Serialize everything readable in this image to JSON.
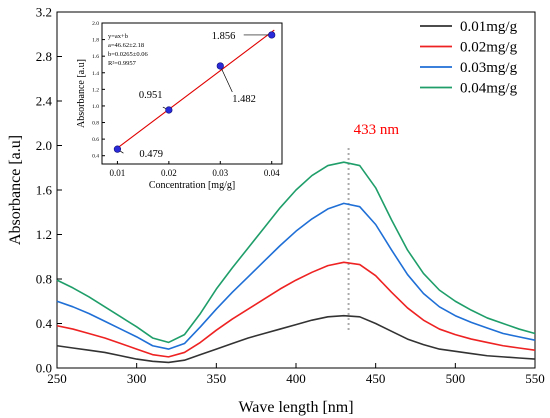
{
  "chart_data": [
    {
      "type": "line",
      "title": "",
      "xlabel": "Wave length  [nm]",
      "ylabel": "Absorbance [a.u]",
      "xlim": [
        250,
        550
      ],
      "ylim": [
        0.0,
        3.2
      ],
      "x_ticks": [
        "250",
        "300",
        "350",
        "400",
        "450",
        "500",
        "550"
      ],
      "y_ticks": [
        "0.0",
        "0.4",
        "0.8",
        "1.2",
        "1.6",
        "2.0",
        "2.4",
        "2.8",
        "3.2"
      ],
      "x": [
        250,
        260,
        270,
        280,
        290,
        300,
        310,
        320,
        330,
        340,
        350,
        360,
        370,
        380,
        390,
        400,
        410,
        420,
        430,
        440,
        450,
        460,
        470,
        480,
        490,
        500,
        510,
        520,
        530,
        540,
        550
      ],
      "legend_position": "top-right",
      "annotation": {
        "text": "433 nm",
        "x": 433,
        "color": "#ff0000"
      },
      "series": [
        {
          "name": "0.01mg/g",
          "color": "#333333",
          "values": [
            0.2,
            0.18,
            0.16,
            0.14,
            0.11,
            0.08,
            0.06,
            0.05,
            0.07,
            0.12,
            0.17,
            0.22,
            0.27,
            0.31,
            0.35,
            0.39,
            0.43,
            0.46,
            0.47,
            0.46,
            0.4,
            0.33,
            0.26,
            0.21,
            0.17,
            0.15,
            0.13,
            0.11,
            0.1,
            0.09,
            0.08
          ]
        },
        {
          "name": "0.02mg/g",
          "color": "#ee2222",
          "values": [
            0.38,
            0.35,
            0.31,
            0.27,
            0.22,
            0.17,
            0.12,
            0.1,
            0.14,
            0.23,
            0.34,
            0.44,
            0.53,
            0.62,
            0.71,
            0.79,
            0.86,
            0.92,
            0.95,
            0.93,
            0.83,
            0.68,
            0.54,
            0.43,
            0.35,
            0.3,
            0.26,
            0.23,
            0.2,
            0.18,
            0.16
          ]
        },
        {
          "name": "0.03mg/g",
          "color": "#1f6fd6",
          "values": [
            0.6,
            0.55,
            0.49,
            0.42,
            0.35,
            0.28,
            0.2,
            0.17,
            0.22,
            0.37,
            0.53,
            0.68,
            0.82,
            0.96,
            1.1,
            1.23,
            1.34,
            1.43,
            1.48,
            1.45,
            1.29,
            1.06,
            0.84,
            0.67,
            0.55,
            0.47,
            0.41,
            0.36,
            0.31,
            0.28,
            0.25
          ]
        },
        {
          "name": "0.04mg/g",
          "color": "#1f9e6a",
          "values": [
            0.79,
            0.72,
            0.64,
            0.55,
            0.46,
            0.37,
            0.27,
            0.23,
            0.3,
            0.49,
            0.71,
            0.9,
            1.08,
            1.26,
            1.44,
            1.6,
            1.73,
            1.82,
            1.85,
            1.82,
            1.62,
            1.33,
            1.06,
            0.85,
            0.7,
            0.6,
            0.52,
            0.45,
            0.4,
            0.35,
            0.31
          ]
        }
      ]
    },
    {
      "type": "scatter",
      "title": "",
      "xlabel": "Concentration  [mg/g]",
      "ylabel": "Absorbance [a.u]",
      "xlim": [
        0.007,
        0.042
      ],
      "ylim": [
        0.3,
        2.0
      ],
      "x_ticks": [
        "0.01",
        "0.02",
        "0.03",
        "0.04"
      ],
      "y_ticks": [
        "0.4",
        "0.6",
        "0.8",
        "1.0",
        "1.2",
        "1.4",
        "1.6",
        "1.8",
        "2.0"
      ],
      "points": [
        {
          "x": 0.01,
          "y": 0.479,
          "label": "0.479"
        },
        {
          "x": 0.02,
          "y": 0.951,
          "label": "0.951"
        },
        {
          "x": 0.03,
          "y": 1.482,
          "label": "1.482"
        },
        {
          "x": 0.04,
          "y": 1.856,
          "label": "1.856"
        }
      ],
      "fit": {
        "slope": 46.62,
        "intercept": 0.0265,
        "color": "#e00000"
      },
      "equation": [
        "y=ax+b",
        "a=46.62±2.18",
        "b=0.0265±0.06",
        "R²=0.9957"
      ]
    }
  ]
}
